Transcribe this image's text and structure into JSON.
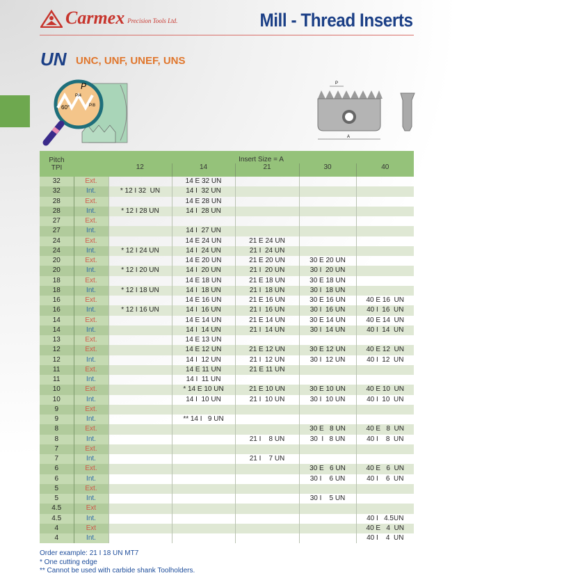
{
  "logo": {
    "brand": "Carmex",
    "subtitle": "Precision Tools Ltd."
  },
  "page_title": "Mill - Thread Inserts",
  "section": {
    "title": "UN",
    "subtitle": "UNC, UNF, UNEF, UNS"
  },
  "diagram_labels": {
    "pitch": "P",
    "quarter": "P/4",
    "eighth": "P/8",
    "angle": "60°",
    "size": "A"
  },
  "table": {
    "pitch_header": "Pitch\nTPI",
    "group_header": "Insert Size = A",
    "sizes": [
      "12",
      "14",
      "21",
      "30",
      "40"
    ],
    "rows": [
      [
        "32",
        "Ext.",
        "",
        "14 E 32 UN",
        "",
        "",
        ""
      ],
      [
        "32",
        "Int.",
        "* 12 I 32  UN",
        "14 I  32 UN",
        "",
        "",
        ""
      ],
      [
        "28",
        "Ext.",
        "",
        "14 E 28 UN",
        "",
        "",
        ""
      ],
      [
        "28",
        "Int.",
        "* 12 I 28 UN",
        "14 I  28 UN",
        "",
        "",
        ""
      ],
      [
        "27",
        "Ext.",
        "",
        "",
        "",
        "",
        ""
      ],
      [
        "27",
        "Int.",
        "",
        "14 I  27 UN",
        "",
        "",
        ""
      ],
      [
        "24",
        "Ext.",
        "",
        "14 E 24 UN",
        "21 E 24 UN",
        "",
        ""
      ],
      [
        "24",
        "Int.",
        "* 12 I 24 UN",
        "14 I  24 UN",
        "21 I  24 UN",
        "",
        ""
      ],
      [
        "20",
        "Ext.",
        "",
        "14 E 20 UN",
        "21 E 20 UN",
        "30 E 20 UN",
        ""
      ],
      [
        "20",
        "Int.",
        "* 12 I 20 UN",
        "14 I  20 UN",
        "21 I  20 UN",
        "30 I  20 UN",
        ""
      ],
      [
        "18",
        "Ext.",
        "",
        "14 E 18 UN",
        "21 E 18 UN",
        "30 E 18 UN",
        ""
      ],
      [
        "18",
        "Int.",
        "* 12 I 18 UN",
        "14 I  18 UN",
        "21 I  18 UN",
        "30 I  18 UN",
        ""
      ],
      [
        "16",
        "Ext.",
        "",
        "14 E 16 UN",
        "21 E 16 UN",
        "30 E 16 UN",
        "40 E 16  UN"
      ],
      [
        "16",
        "Int.",
        "* 12 I 16 UN",
        "14 I  16 UN",
        "21 I  16 UN",
        "30 I  16 UN",
        "40 I  16  UN"
      ],
      [
        "14",
        "Ext.",
        "",
        "14 E 14 UN",
        "21 E 14 UN",
        "30 E 14 UN",
        "40 E 14  UN"
      ],
      [
        "14",
        "Int.",
        "",
        "14 I  14 UN",
        "21 I  14 UN",
        "30 I  14 UN",
        "40 I  14  UN"
      ],
      [
        "13",
        "Ext.",
        "",
        "14 E 13 UN",
        "",
        "",
        ""
      ],
      [
        "12",
        "Ext.",
        "",
        "14 E 12 UN",
        "21 E 12 UN",
        "30 E 12 UN",
        "40 E 12  UN"
      ],
      [
        "12",
        "Int.",
        "",
        "14 I  12 UN",
        "21 I  12 UN",
        "30 I  12 UN",
        "40 I  12  UN"
      ],
      [
        "11",
        "Ext.",
        "",
        "14 E 11 UN",
        "21 E 11 UN",
        "",
        ""
      ],
      [
        "11",
        "Int.",
        "",
        "14 I  11 UN",
        "",
        "",
        ""
      ],
      [
        "10",
        "Ext.",
        "",
        "* 14 E 10 UN",
        "21 E 10 UN",
        "30 E 10 UN",
        "40 E 10  UN"
      ],
      [
        "10",
        "Int.",
        "",
        "14 I  10 UN",
        "21 I  10 UN",
        "30 I  10 UN",
        "40 I  10  UN"
      ],
      [
        "9",
        "Ext.",
        "",
        "",
        "",
        "",
        ""
      ],
      [
        "9",
        "Int.",
        "",
        "** 14 I   9 UN",
        "",
        "",
        ""
      ],
      [
        "8",
        "Ext.",
        "",
        "",
        "",
        "30 E   8 UN",
        "40 E   8  UN"
      ],
      [
        "8",
        "Int.",
        "",
        "",
        "21 I    8 UN",
        "30  I   8 UN",
        "40 I    8  UN"
      ],
      [
        "7",
        "Ext.",
        "",
        "",
        "",
        "",
        ""
      ],
      [
        "7",
        "Int.",
        "",
        "",
        "21 I    7 UN",
        "",
        ""
      ],
      [
        "6",
        "Ext.",
        "",
        "",
        "",
        "30 E   6 UN",
        "40 E   6  UN"
      ],
      [
        "6",
        "Int.",
        "",
        "",
        "",
        "30 I    6 UN",
        "40 I    6  UN"
      ],
      [
        "5",
        "Ext.",
        "",
        "",
        "",
        "",
        ""
      ],
      [
        "5",
        "Int.",
        "",
        "",
        "",
        "30 I    5 UN",
        ""
      ],
      [
        "4.5",
        "Ext",
        "",
        "",
        "",
        "",
        ""
      ],
      [
        "4.5",
        "Int.",
        "",
        "",
        "",
        "",
        "40 I   4.5UN"
      ],
      [
        "4",
        "Ext",
        "",
        "",
        "",
        "",
        "40 E   4  UN"
      ],
      [
        "4",
        "Int.",
        "",
        "",
        "",
        "",
        "40 I    4  UN"
      ]
    ]
  },
  "notes": {
    "order_example": "Order example: 21 I 18 UN MT7",
    "note1": "* One cutting edge",
    "note2": "** Cannot be used with carbide shank Toolholders."
  },
  "colors": {
    "brand_red": "#c7342c",
    "title_blue": "#1b3f86",
    "accent_orange": "#e0762c",
    "header_green": "#95c27a",
    "ext_red": "#d0594a",
    "int_blue": "#2d6aa8"
  }
}
